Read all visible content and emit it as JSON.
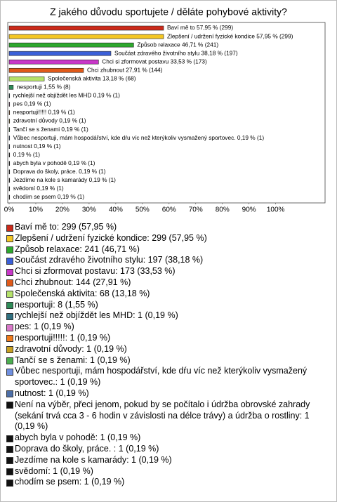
{
  "chart_data": {
    "type": "bar",
    "orientation": "horizontal",
    "title": "Z jakého důvodu sportujete / děláte pohybové aktivity?",
    "categories": [
      "Baví mě to: 299 (57,95 %)",
      "Zlepšení / udržení fyzické kondice: 299 (57,95 %)",
      "Způsob relaxace: 241 (46,71 %)",
      "Součást zdravého životního stylu: 197 (38,18 %)",
      "Chci si zformovat postavu: 173 (33,53 %)",
      "Chci zhubnout: 144 (27,91 %)",
      "Společenská aktivita: 68 (13,18 %)",
      "nesportuji: 8 (1,55 %)",
      "rychlejší než objíždět les MHD: 1 (0,19 %)",
      "pes: 1 (0,19 %)",
      "nesportuji!!!!!: 1 (0,19 %)",
      "zdravotní důvody: 1 (0,19 %)",
      "Tančí se s ženami: 1 (0,19 %)",
      "Vůbec nesportuji, mám hospodářství, kde dŕu víc než kterýkoliv vysmažený sportovec.: 1 (0,19 %)",
      "nutnost: 1 (0,19 %)",
      "Není na výběr, přeci jenom, pokud by se počítalo i údržba obrovské zahrady (sekání trvá cca 3 - 6 hodin v závislosti na délce trávy) a údržba o rostliny: 1 (0,19 %)",
      "abych byla v pohodě: 1 (0,19 %)",
      "Doprava do školy, práce. : 1 (0,19 %)",
      "Jezdíme na kole s kamarády: 1 (0,19 %)",
      "svědomí: 1 (0,19 %)",
      "chodím se psem: 1 (0,19 %)"
    ],
    "values": [
      57.95,
      57.95,
      46.71,
      38.18,
      33.53,
      27.91,
      13.18,
      1.55,
      0.19,
      0.19,
      0.19,
      0.19,
      0.19,
      0.19,
      0.19,
      0.19,
      0.19,
      0.19,
      0.19,
      0.19,
      0.19
    ],
    "value_labels": [
      "Baví mě to 57,95 % (299)",
      "Zlepšení / udržení fyzické kondice 57,95 % (299)",
      "Způsob relaxace 46,71 % (241)",
      "Součást zdravého životního stylu 38,18 % (197)",
      "Chci si zformovat postavu 33,53 % (173)",
      "Chci zhubnout 27,91 % (144)",
      "Společenská aktivita 13,18 % (68)",
      "nesportuji 1,55 % (8)",
      "rychlejší než objíždět les MHD 0,19 % (1)",
      "pes 0,19 % (1)",
      "nesportuji!!!!! 0,19 % (1)",
      "zdravotní důvody 0,19 % (1)",
      "Tančí se s ženami 0,19 % (1)",
      "Vůbec nesportuji, mám hospodářství, kde dŕu víc než kterýkoliv vysmažený sportovec. 0,19 % (1)",
      "nutnost 0,19 % (1)",
      "0,19 % (1)",
      "abych byla v pohodě 0,19 % (1)",
      "Doprava do školy, práce.  0,19 % (1)",
      "Jezdíme na kole s kamarády 0,19 % (1)",
      "svědomí 0,19 % (1)",
      "chodím se psem 0,19 % (1)"
    ],
    "colors": [
      "#cc2a1a",
      "#f3c623",
      "#2da82d",
      "#3b5fd8",
      "#c837c8",
      "#e05a1a",
      "#b5e26a",
      "#2e8b57",
      "#2f6f7f",
      "#d877c8",
      "#f07a1a",
      "#c8a020",
      "#4caf50",
      "#6f8fdf",
      "#4d6fa8",
      "#111111",
      "#111111",
      "#111111",
      "#111111",
      "#111111",
      "#111111"
    ],
    "xlim": [
      0,
      118
    ],
    "xticks": [
      {
        "value": 0,
        "label": "0%"
      },
      {
        "value": 10,
        "label": "10%"
      },
      {
        "value": 20,
        "label": "20%"
      },
      {
        "value": 30,
        "label": "30%"
      },
      {
        "value": 40,
        "label": "40%"
      },
      {
        "value": 50,
        "label": "50%"
      },
      {
        "value": 60,
        "label": "60%"
      },
      {
        "value": 70,
        "label": "70%"
      },
      {
        "value": 80,
        "label": "80%"
      },
      {
        "value": 90,
        "label": "90%"
      },
      {
        "value": 100,
        "label": "100%"
      }
    ]
  }
}
